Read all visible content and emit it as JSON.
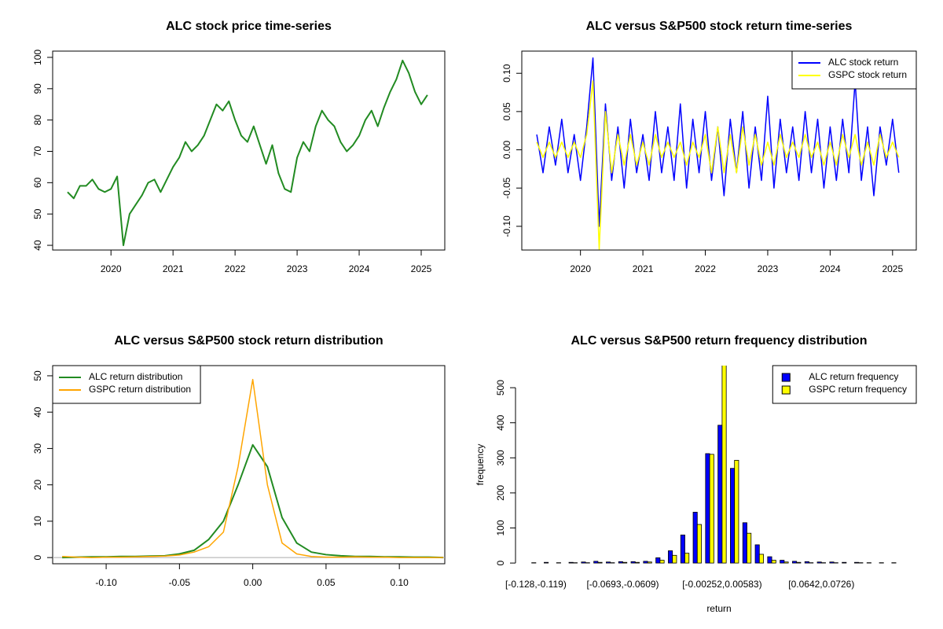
{
  "chart_data": [
    {
      "type": "line",
      "title": "ALC stock price time-series",
      "box": true,
      "x": [
        2019.3,
        2019.4,
        2019.5,
        2019.6,
        2019.7,
        2019.8,
        2019.9,
        2020.0,
        2020.1,
        2020.2,
        2020.3,
        2020.4,
        2020.5,
        2020.6,
        2020.7,
        2020.8,
        2020.9,
        2021.0,
        2021.1,
        2021.2,
        2021.3,
        2021.4,
        2021.5,
        2021.6,
        2021.7,
        2021.8,
        2021.9,
        2022.0,
        2022.1,
        2022.2,
        2022.3,
        2022.4,
        2022.5,
        2022.6,
        2022.7,
        2022.8,
        2022.9,
        2023.0,
        2023.1,
        2023.2,
        2023.3,
        2023.4,
        2023.5,
        2023.6,
        2023.7,
        2023.8,
        2023.9,
        2024.0,
        2024.1,
        2024.2,
        2024.3,
        2024.4,
        2024.5,
        2024.6,
        2024.7,
        2024.8,
        2024.9,
        2025.0,
        2025.1
      ],
      "series": [
        {
          "color": "#228b22",
          "values": [
            57,
            55,
            59,
            59,
            61,
            58,
            57,
            58,
            62,
            40,
            50,
            53,
            56,
            60,
            61,
            57,
            61,
            65,
            68,
            73,
            70,
            72,
            75,
            80,
            85,
            83,
            86,
            80,
            75,
            73,
            78,
            72,
            66,
            72,
            63,
            58,
            57,
            68,
            73,
            70,
            78,
            83,
            80,
            78,
            73,
            70,
            72,
            75,
            80,
            83,
            78,
            84,
            89,
            93,
            99,
            95,
            89,
            85,
            88
          ]
        }
      ],
      "xlim": [
        2019.06,
        2025.38
      ],
      "xticks": [
        2020,
        2021,
        2022,
        2023,
        2024,
        2025
      ],
      "ylim": [
        38.5,
        102
      ],
      "yticks": [
        40,
        50,
        60,
        70,
        80,
        90,
        100
      ]
    },
    {
      "type": "line",
      "title": "ALC versus S&P500 stock return time-series",
      "box": true,
      "legend": "topright",
      "x": [
        2019.3,
        2019.4,
        2019.5,
        2019.6,
        2019.7,
        2019.8,
        2019.9,
        2020.0,
        2020.1,
        2020.2,
        2020.3,
        2020.4,
        2020.5,
        2020.6,
        2020.7,
        2020.8,
        2020.9,
        2021.0,
        2021.1,
        2021.2,
        2021.3,
        2021.4,
        2021.5,
        2021.6,
        2021.7,
        2021.8,
        2021.9,
        2022.0,
        2022.1,
        2022.2,
        2022.3,
        2022.4,
        2022.5,
        2022.6,
        2022.7,
        2022.8,
        2022.9,
        2023.0,
        2023.1,
        2023.2,
        2023.3,
        2023.4,
        2023.5,
        2023.6,
        2023.7,
        2023.8,
        2023.9,
        2024.0,
        2024.1,
        2024.2,
        2024.3,
        2024.4,
        2024.5,
        2024.6,
        2024.7,
        2024.8,
        2024.9,
        2025.0,
        2025.1
      ],
      "series": [
        {
          "name": "ALC stock return",
          "color": "#0000ff",
          "values": [
            0.02,
            -0.03,
            0.03,
            -0.02,
            0.04,
            -0.03,
            0.02,
            -0.04,
            0.03,
            0.12,
            -0.1,
            0.06,
            -0.04,
            0.03,
            -0.05,
            0.04,
            -0.03,
            0.02,
            -0.04,
            0.05,
            -0.03,
            0.03,
            -0.04,
            0.06,
            -0.05,
            0.04,
            -0.03,
            0.05,
            -0.04,
            0.03,
            -0.06,
            0.04,
            -0.03,
            0.05,
            -0.05,
            0.03,
            -0.04,
            0.07,
            -0.05,
            0.04,
            -0.03,
            0.03,
            -0.04,
            0.05,
            -0.03,
            0.04,
            -0.05,
            0.03,
            -0.04,
            0.04,
            -0.03,
            0.09,
            -0.04,
            0.03,
            -0.06,
            0.03,
            -0.02,
            0.04,
            -0.03
          ]
        },
        {
          "name": "GSPC stock return",
          "color": "#ffff00",
          "values": [
            0.01,
            -0.01,
            0.01,
            -0.01,
            0.01,
            -0.01,
            0.01,
            -0.01,
            0.02,
            0.09,
            -0.13,
            0.05,
            -0.03,
            0.02,
            -0.02,
            0.02,
            -0.02,
            0.01,
            -0.02,
            0.02,
            -0.01,
            0.01,
            -0.01,
            0.01,
            -0.02,
            0.01,
            -0.01,
            0.02,
            -0.03,
            0.03,
            -0.03,
            0.02,
            -0.03,
            0.03,
            -0.02,
            0.02,
            -0.02,
            0.01,
            -0.02,
            0.02,
            -0.01,
            0.01,
            -0.01,
            0.02,
            -0.01,
            0.01,
            -0.02,
            0.01,
            -0.02,
            0.02,
            -0.01,
            0.02,
            -0.02,
            0.01,
            -0.02,
            0.02,
            -0.01,
            0.01,
            -0.01
          ]
        }
      ],
      "xlim": [
        2019.06,
        2025.38
      ],
      "xticks": [
        2020,
        2021,
        2022,
        2023,
        2024,
        2025
      ],
      "ylim": [
        -0.131,
        0.129
      ],
      "yticks": [
        {
          "value": -0.1,
          "label": "-0.10"
        },
        {
          "value": -0.05,
          "label": "-0.05"
        },
        {
          "value": 0,
          "label": "0.00"
        },
        {
          "value": 0.05,
          "label": "0.05"
        },
        {
          "value": 0.1,
          "label": "0.10"
        }
      ]
    },
    {
      "type": "line",
      "title": "ALC versus S&P500 stock return distribution",
      "box": true,
      "legend": "topleft",
      "zero_line": true,
      "x": [
        -0.13,
        -0.12,
        -0.11,
        -0.1,
        -0.09,
        -0.08,
        -0.07,
        -0.06,
        -0.05,
        -0.04,
        -0.03,
        -0.02,
        -0.01,
        0.0,
        0.01,
        0.02,
        0.03,
        0.04,
        0.05,
        0.06,
        0.07,
        0.08,
        0.09,
        0.1,
        0.11,
        0.12,
        0.13
      ],
      "series": [
        {
          "name": "ALC return distribution",
          "color": "#228b22",
          "values": [
            0,
            0.1,
            0.2,
            0.2,
            0.3,
            0.3,
            0.4,
            0.5,
            1,
            2,
            5,
            10,
            20,
            31,
            25,
            11,
            4,
            1.5,
            0.8,
            0.5,
            0.3,
            0.3,
            0.2,
            0.2,
            0.1,
            0.1,
            0
          ]
        },
        {
          "name": "GSPC return distribution",
          "color": "#ffa500",
          "values": [
            0.3,
            0.1,
            0,
            0.1,
            0.1,
            0.2,
            0.3,
            0.4,
            0.7,
            1.5,
            3,
            7,
            25,
            49,
            20,
            4,
            1,
            0.3,
            0.1,
            0.1,
            0.2,
            0.1,
            0.1,
            0,
            0,
            0,
            0
          ]
        }
      ],
      "xlim": [
        -0.1365,
        0.131
      ],
      "xticks": [
        {
          "value": -0.1,
          "label": "-0.10"
        },
        {
          "value": -0.05,
          "label": "-0.05"
        },
        {
          "value": 0,
          "label": "0.00"
        },
        {
          "value": 0.05,
          "label": "0.05"
        },
        {
          "value": 0.1,
          "label": "0.10"
        }
      ],
      "ylim": [
        -1.7,
        52.8
      ],
      "yticks": [
        0,
        10,
        20,
        30,
        40,
        50
      ]
    },
    {
      "type": "bar",
      "title": "ALC versus S&P500 return frequency distribution",
      "legend": "topright",
      "x_label": "return",
      "y_label": "frequency",
      "categories": [
        "[-0.128,-0.119)",
        null,
        null,
        null,
        null,
        null,
        null,
        "[-0.0693,-0.0609)",
        null,
        null,
        null,
        null,
        null,
        null,
        null,
        "[-0.00252,0.00583)",
        null,
        null,
        null,
        null,
        null,
        null,
        null,
        "[0.0642,0.0726)",
        null,
        null,
        null,
        null,
        null,
        null
      ],
      "series": [
        {
          "name": "ALC return frequency",
          "color": "#0000ff",
          "values": [
            1,
            2,
            1,
            2,
            3,
            5,
            3,
            4,
            4,
            5,
            15,
            35,
            80,
            145,
            312,
            393,
            270,
            115,
            52,
            18,
            8,
            5,
            4,
            3,
            3,
            2,
            2,
            1,
            1,
            1
          ]
        },
        {
          "name": "GSPC return frequency",
          "color": "#ffff00",
          "values": [
            0,
            0,
            0,
            1,
            1,
            2,
            1,
            2,
            2,
            3,
            8,
            22,
            28,
            110,
            310,
            570,
            293,
            85,
            25,
            8,
            3,
            2,
            1,
            1,
            1,
            0,
            1,
            0,
            0,
            0
          ]
        }
      ],
      "ylim": [
        -2,
        563
      ],
      "yticks": [
        0,
        100,
        200,
        300,
        400,
        500
      ]
    }
  ]
}
